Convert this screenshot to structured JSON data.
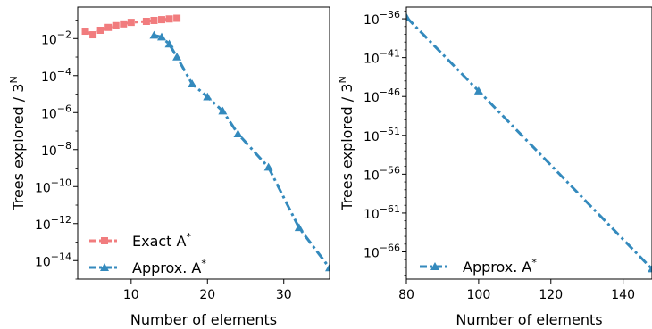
{
  "chart_data": [
    {
      "type": "line",
      "xlabel": "Number of elements",
      "ylabel": "Trees explored / 3^N",
      "ylabel_parts": {
        "base": "Trees explored / 3",
        "sup": "N"
      },
      "yscale": "log",
      "xlim": [
        3,
        36
      ],
      "ylim_exp": [
        -15,
        -0.3
      ],
      "xticks": [
        10,
        20,
        30
      ],
      "yticks_exp": [
        -2,
        -4,
        -6,
        -8,
        -10,
        -12,
        -14
      ],
      "grid": false,
      "legend_position": "lower-left",
      "series": [
        {
          "name": "Exact A*",
          "name_parts": {
            "base": "Exact A",
            "sup": "*"
          },
          "color": "#f17c7e",
          "marker": "square",
          "linestyle": "dashdot",
          "x": [
            4,
            5,
            6,
            7,
            8,
            9,
            10,
            12,
            13,
            14,
            15,
            16
          ],
          "y": [
            0.025,
            0.016,
            0.028,
            0.04,
            0.05,
            0.062,
            0.075,
            0.085,
            0.095,
            0.105,
            0.115,
            0.125
          ]
        },
        {
          "name": "Approx. A*",
          "name_parts": {
            "base": "Approx. A",
            "sup": "*"
          },
          "color": "#348abd",
          "marker": "triangle",
          "linestyle": "dashdot",
          "x": [
            13,
            14,
            15,
            16,
            18,
            20,
            22,
            24,
            28,
            32,
            36
          ],
          "y": [
            0.015,
            0.012,
            0.005,
            0.001,
            3.5e-05,
            7e-06,
            1.2e-06,
            7e-08,
            1.1e-09,
            6e-13,
            4e-15
          ]
        }
      ]
    },
    {
      "type": "line",
      "xlabel": "Number of elements",
      "ylabel": "Trees explored / 3^N",
      "ylabel_parts": {
        "base": "Trees explored / 3",
        "sup": "N"
      },
      "yscale": "log",
      "xlim": [
        80,
        148
      ],
      "ylim_exp": [
        -69.5,
        -34.5
      ],
      "xticks": [
        80,
        100,
        120,
        140
      ],
      "yticks_exp": [
        -36,
        -41,
        -46,
        -51,
        -56,
        -61,
        -66
      ],
      "grid": false,
      "legend_position": "lower-left",
      "series": [
        {
          "name": "Approx. A*",
          "name_parts": {
            "base": "Approx. A",
            "sup": "*"
          },
          "color": "#348abd",
          "marker": "triangle",
          "linestyle": "dashdot",
          "x": [
            80,
            100,
            148
          ],
          "y_exp": [
            -35.8,
            -45.3,
            -68.2
          ]
        }
      ]
    }
  ]
}
